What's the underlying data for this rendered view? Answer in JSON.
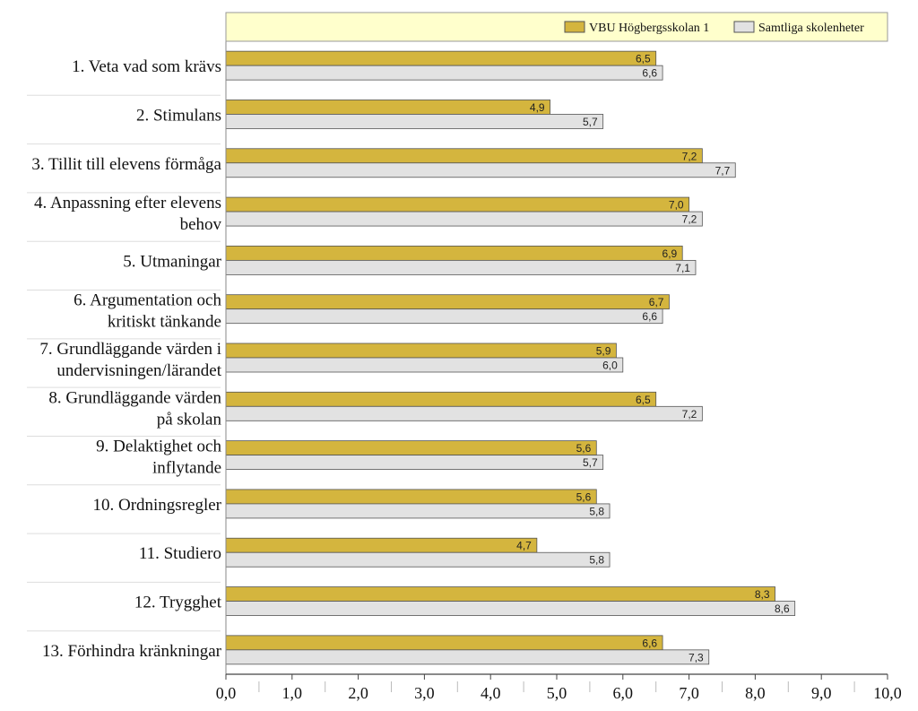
{
  "chart_data": {
    "type": "bar",
    "orientation": "horizontal",
    "title": "",
    "xlabel": "",
    "ylabel": "",
    "xlim": [
      0,
      10
    ],
    "ticks": [
      "0,0",
      "1,0",
      "2,0",
      "3,0",
      "4,0",
      "5,0",
      "6,0",
      "7,0",
      "8,0",
      "9,0",
      "10,0"
    ],
    "grid": false,
    "legend_position": "top-right",
    "categories": [
      [
        "1. Veta vad som krävs"
      ],
      [
        "2. Stimulans"
      ],
      [
        "3. Tillit till elevens förmåga"
      ],
      [
        "4. Anpassning efter elevens",
        "behov"
      ],
      [
        "5. Utmaningar"
      ],
      [
        "6. Argumentation och",
        "kritiskt tänkande"
      ],
      [
        "7. Grundläggande värden i",
        "undervisningen/lärandet"
      ],
      [
        "8. Grundläggande värden",
        "på skolan"
      ],
      [
        "9. Delaktighet och",
        "inflytande"
      ],
      [
        "10. Ordningsregler"
      ],
      [
        "11. Studiero"
      ],
      [
        "12. Trygghet"
      ],
      [
        "13. Förhindra kränkningar"
      ]
    ],
    "series": [
      {
        "name": "VBU Högbergsskolan 1",
        "color": "#D4B53E",
        "values": [
          6.5,
          4.9,
          7.2,
          7.0,
          6.9,
          6.7,
          5.9,
          6.5,
          5.6,
          5.6,
          4.7,
          8.3,
          6.6
        ],
        "labels": [
          "6,5",
          "4,9",
          "7,2",
          "7,0",
          "6,9",
          "6,7",
          "5,9",
          "6,5",
          "5,6",
          "5,6",
          "4,7",
          "8,3",
          "6,6"
        ]
      },
      {
        "name": "Samtliga skolenheter",
        "color": "#E2E2E2",
        "values": [
          6.6,
          5.7,
          7.7,
          7.2,
          7.1,
          6.6,
          6.0,
          7.2,
          5.7,
          5.8,
          5.8,
          8.6,
          7.3
        ],
        "labels": [
          "6,6",
          "5,7",
          "7,7",
          "7,2",
          "7,1",
          "6,6",
          "6,0",
          "7,2",
          "5,7",
          "5,8",
          "5,8",
          "8,6",
          "7,3"
        ]
      }
    ]
  },
  "colors": {
    "legend_background": "#FFFFCC",
    "bar_border": "#555555"
  }
}
